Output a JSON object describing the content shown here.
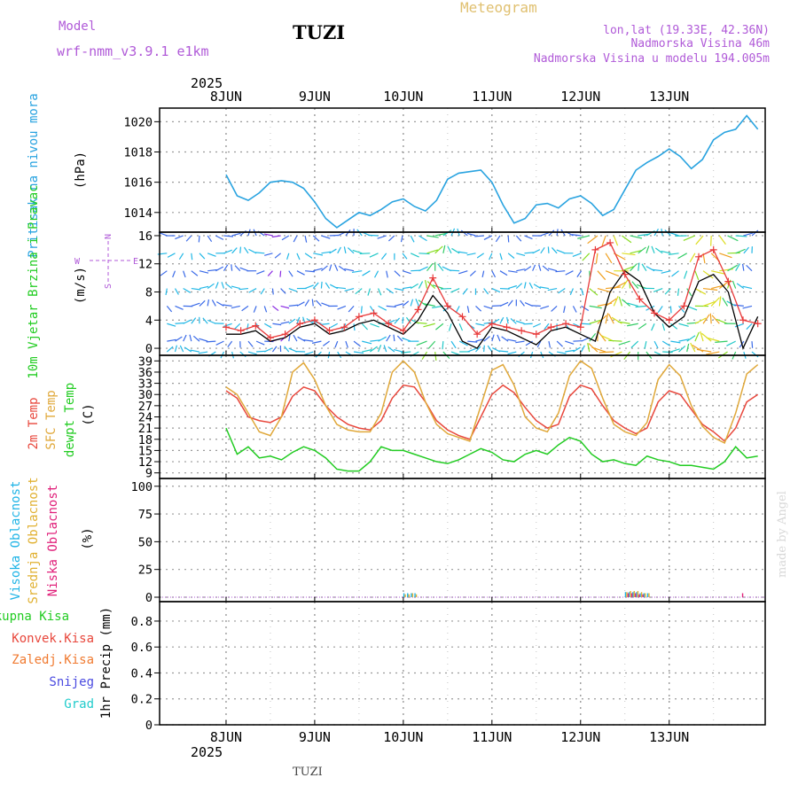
{
  "header": {
    "model_label": "Model",
    "model_name": "wrf-nmm_v3.9.1 e1km",
    "station": "TUZI",
    "title": "Meteogram",
    "lonlat": "lon,lat (19.33E, 42.36N)",
    "altitude": "Nadmorska Visina 46m",
    "model_altitude": "Nadmorska Visina u modelu 194.005m"
  },
  "footer": {
    "station": "TUZI",
    "watermark": "made by Angel"
  },
  "colors": {
    "pressure": "#29a3e0",
    "temp2m": "#e8473c",
    "sfc_temp": "#e0a83a",
    "dewpoint": "#22cc22",
    "high_cloud": "#20b4e6",
    "mid_cloud": "#e0b030",
    "low_cloud": "#e0207a",
    "wind_speed": "#e83a3a",
    "wind_gust": "#000000",
    "accent_purple": "#b05ad8",
    "pressure_label": "#29a3e0"
  },
  "chart_data": [
    {
      "type": "line",
      "panel": "pressure",
      "ylabel_name": "Pritisak na nivou mora",
      "ylabel_unit": "(hPa)",
      "x_labels_top": [
        "8JUN",
        "9JUN",
        "10JUN",
        "11JUN",
        "12JUN",
        "13JUN"
      ],
      "year_top": "2025",
      "yticks": [
        1014,
        1016,
        1018,
        1020
      ],
      "ylim": [
        1012.7,
        1020.9
      ],
      "grid": true,
      "x": [
        0,
        3,
        6,
        9,
        12,
        15,
        18,
        21,
        24,
        27,
        30,
        33,
        36,
        39,
        42,
        45,
        48,
        51,
        54,
        57,
        60,
        63,
        66,
        69,
        72,
        75,
        78,
        81,
        84,
        87,
        90,
        93,
        96,
        99,
        102,
        105,
        108,
        111,
        114,
        117,
        120,
        123,
        126,
        129,
        132,
        135,
        138,
        141,
        144
      ],
      "series": [
        {
          "values": [
            1016.5,
            1015.1,
            1014.8,
            1015.3,
            1016.0,
            1016.1,
            1016.0,
            1015.6,
            1014.7,
            1013.6,
            1013.0,
            1013.5,
            1014.0,
            1013.8,
            1014.2,
            1014.7,
            1014.9,
            1014.4,
            1014.1,
            1014.8,
            1016.2,
            1016.6,
            1016.7,
            1016.8,
            1016.0,
            1014.5,
            1013.3,
            1013.6,
            1014.5,
            1014.6,
            1014.3,
            1014.9,
            1015.1,
            1014.6,
            1013.8,
            1014.2,
            1015.5,
            1016.8,
            1017.3,
            1017.7,
            1018.2,
            1017.7,
            1016.9,
            1017.5,
            1018.8,
            1019.3,
            1019.5,
            1020.4,
            1019.5
          ]
        }
      ]
    },
    {
      "type": "line",
      "panel": "wind",
      "ylabel_name": "10m Vjetar Brzina i Pravac",
      "ylabel_unit": "(m/s)",
      "compass": {
        "n": "N",
        "w": "W",
        "e": "E",
        "s": "S"
      },
      "yticks": [
        0,
        4,
        8,
        12,
        16
      ],
      "ylim": [
        -1,
        16.5
      ],
      "grid": true,
      "x": [
        0,
        4,
        8,
        12,
        16,
        20,
        24,
        28,
        32,
        36,
        40,
        44,
        48,
        52,
        56,
        60,
        64,
        68,
        72,
        76,
        80,
        84,
        88,
        92,
        96,
        100,
        104,
        108,
        112,
        116,
        120,
        124,
        128,
        132,
        136,
        140,
        144
      ],
      "series": [
        {
          "name": "speed",
          "values": [
            3.0,
            2.5,
            3.2,
            1.5,
            2.0,
            3.5,
            4.0,
            2.5,
            3.0,
            4.5,
            5.0,
            3.5,
            2.5,
            5.5,
            10.0,
            6.0,
            4.5,
            2.0,
            3.5,
            3.0,
            2.5,
            2.0,
            3.0,
            3.5,
            3.0,
            14.0,
            15.0,
            10.5,
            7.0,
            5.0,
            4.0,
            6.0,
            13.0,
            14.0,
            9.5,
            4.0,
            3.5
          ]
        },
        {
          "name": "gust",
          "values": [
            2.0,
            2.0,
            2.5,
            1.0,
            1.5,
            3.0,
            3.5,
            2.0,
            2.5,
            3.5,
            4.0,
            3.0,
            2.0,
            4.0,
            7.5,
            5.0,
            1.0,
            0.0,
            3.0,
            2.5,
            1.5,
            0.5,
            2.5,
            3.0,
            2.0,
            1.0,
            8.0,
            11.0,
            9.5,
            5.0,
            3.0,
            4.5,
            9.5,
            10.5,
            8.0,
            0.0,
            4.5
          ]
        }
      ]
    },
    {
      "type": "line",
      "panel": "temperature",
      "ylabel_t2m": "2m Temp",
      "ylabel_sfc": "SFC Temp",
      "ylabel_dew": "dewpt Temp",
      "ylabel_unit": "(C)",
      "yticks": [
        9,
        12,
        15,
        18,
        21,
        24,
        27,
        30,
        33,
        36,
        39
      ],
      "ylim": [
        7.5,
        40.5
      ],
      "grid": true,
      "x": [
        0,
        3,
        6,
        9,
        12,
        15,
        18,
        21,
        24,
        27,
        30,
        33,
        36,
        39,
        42,
        45,
        48,
        51,
        54,
        57,
        60,
        63,
        66,
        69,
        72,
        75,
        78,
        81,
        84,
        87,
        90,
        93,
        96,
        99,
        102,
        105,
        108,
        111,
        114,
        117,
        120,
        123,
        126,
        129,
        132,
        135,
        138,
        141,
        144
      ],
      "series": [
        {
          "name": "2m Temp",
          "values": [
            31.0,
            29.0,
            24.0,
            23.0,
            22.5,
            24.0,
            29.5,
            32.0,
            31.0,
            27.0,
            24.0,
            22.0,
            21.0,
            20.5,
            23.0,
            29.0,
            32.5,
            32.0,
            28.0,
            23.0,
            20.5,
            19.0,
            18.0,
            24.0,
            30.0,
            32.5,
            30.5,
            26.5,
            23.0,
            21.0,
            22.0,
            29.5,
            32.5,
            31.5,
            27.0,
            23.0,
            21.0,
            19.5,
            21.0,
            28.0,
            31.0,
            30.0,
            26.0,
            22.0,
            20.0,
            17.5,
            21.0,
            28.0,
            30.0
          ]
        },
        {
          "name": "SFC Temp",
          "values": [
            32.0,
            30.0,
            25.0,
            20.0,
            19.0,
            24.0,
            36.0,
            38.5,
            34.0,
            27.0,
            22.0,
            20.5,
            20.0,
            20.0,
            25.0,
            36.0,
            39.0,
            36.0,
            28.0,
            22.0,
            19.5,
            18.5,
            17.5,
            27.0,
            36.5,
            38.0,
            32.5,
            24.0,
            21.0,
            20.0,
            25.0,
            35.0,
            39.0,
            37.0,
            29.0,
            22.0,
            20.0,
            19.0,
            22.5,
            34.0,
            38.0,
            35.0,
            27.0,
            21.5,
            18.5,
            17.0,
            25.0,
            35.5,
            38.0
          ]
        },
        {
          "name": "dewpt Temp",
          "values": [
            21.0,
            14.0,
            16.0,
            13.0,
            13.5,
            12.5,
            14.5,
            16.0,
            15.0,
            13.0,
            10.0,
            9.5,
            9.5,
            12.0,
            16.0,
            15.0,
            15.0,
            14.0,
            13.0,
            12.0,
            11.5,
            12.5,
            14.0,
            15.5,
            14.5,
            12.5,
            12.0,
            14.0,
            15.0,
            14.0,
            16.5,
            18.5,
            17.5,
            14.0,
            12.0,
            12.5,
            11.5,
            11.0,
            13.5,
            12.5,
            12.0,
            11.0,
            11.0,
            10.5,
            10.0,
            12.0,
            16.0,
            13.0,
            13.5
          ]
        }
      ]
    },
    {
      "type": "bar",
      "panel": "cloud",
      "ylabel_high": "Visoka Oblacnost",
      "ylabel_mid": "Srednja Oblacnost",
      "ylabel_low": "Niska Oblacnost",
      "ylabel_unit": "(%)",
      "yticks": [
        0,
        25,
        50,
        75,
        100
      ],
      "ylim": [
        -4,
        107
      ],
      "grid": true,
      "x": [
        48,
        49,
        50,
        51,
        108,
        109,
        110,
        111,
        112,
        113,
        114,
        139
      ],
      "series": [
        {
          "name": "Visoka Oblacnost",
          "values": [
            1,
            1,
            1,
            1,
            1.5,
            1.5,
            1.5,
            1.5,
            1,
            1,
            1,
            0
          ]
        },
        {
          "name": "Srednja Oblacnost",
          "values": [
            0.5,
            0.5,
            1,
            0.5,
            1.5,
            2,
            2,
            2,
            1.5,
            1,
            1,
            0
          ]
        },
        {
          "name": "Niska Oblacnost",
          "values": [
            0,
            0,
            0,
            0,
            1,
            1,
            1,
            0.5,
            0.5,
            0,
            0,
            1
          ]
        }
      ]
    },
    {
      "type": "bar",
      "panel": "precip",
      "ylabel": "1hr Precip (mm)",
      "legend": [
        "Ukupna Kisa",
        "Konvek.Kisa",
        "Zaledj.Kisa",
        "Snijeg",
        "Grad"
      ],
      "yticks": [
        0,
        0.2,
        0.4,
        0.6,
        0.8
      ],
      "ylim": [
        0,
        0.95
      ],
      "grid": true,
      "x_labels_bottom": [
        "8JUN",
        "9JUN",
        "10JUN",
        "11JUN",
        "12JUN",
        "13JUN"
      ],
      "year_bottom": "2025",
      "values": []
    }
  ]
}
